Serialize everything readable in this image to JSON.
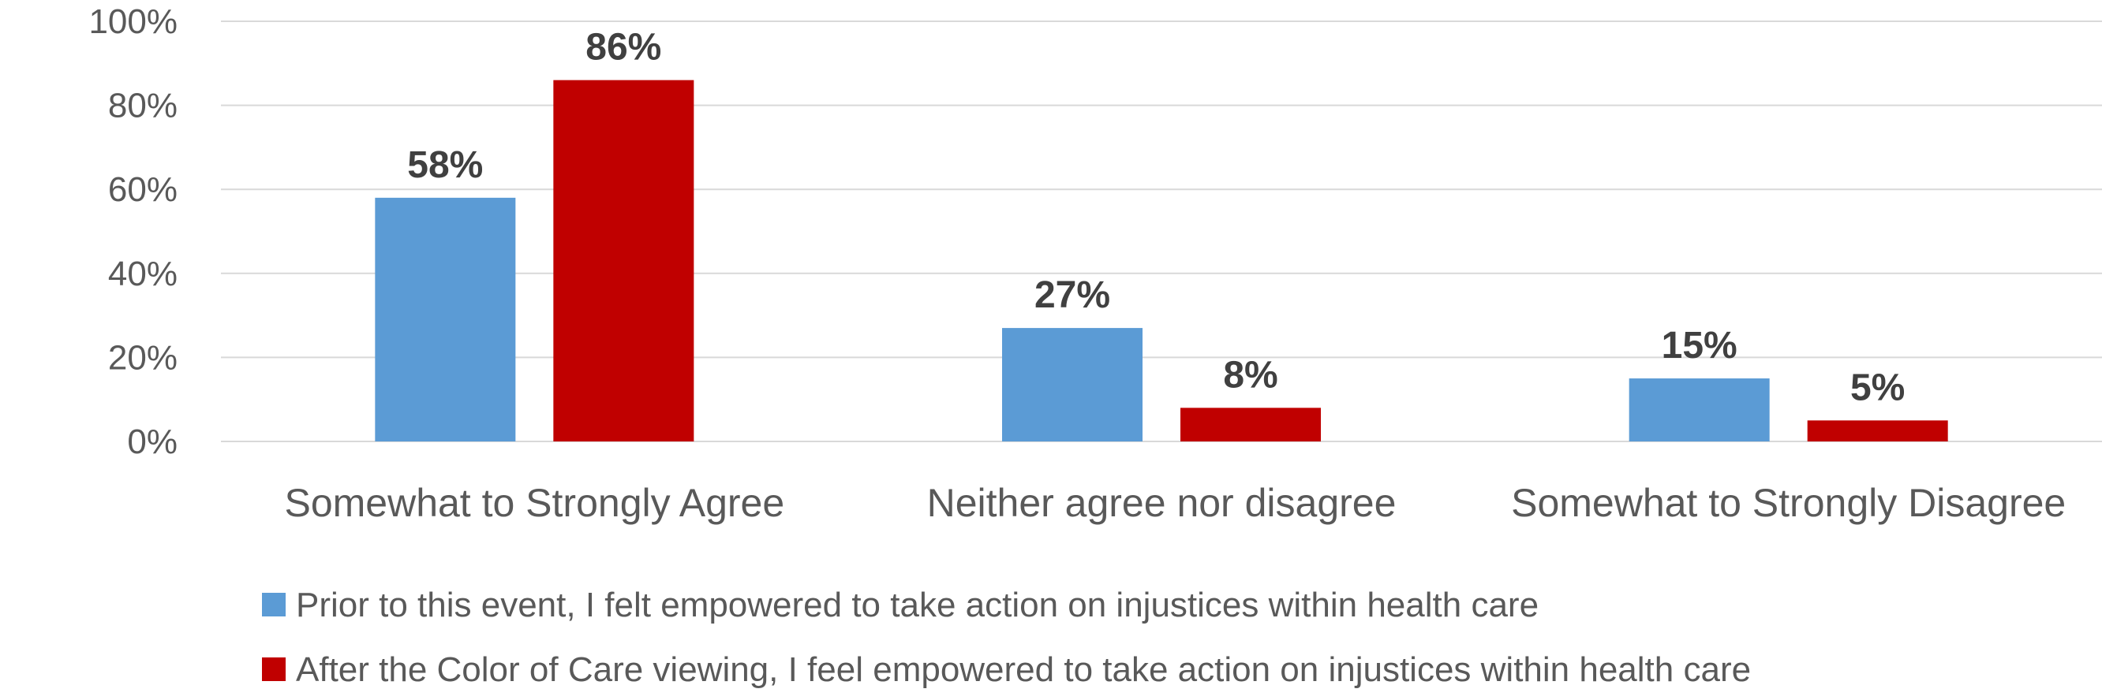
{
  "chart_data": {
    "type": "bar",
    "categories": [
      "Somewhat to Strongly Agree",
      "Neither agree nor disagree",
      "Somewhat to Strongly Disagree"
    ],
    "series": [
      {
        "name": "Prior to this event, I felt empowered to take action on injustices within health care",
        "values": [
          58,
          27,
          15
        ],
        "labels": [
          "58%",
          "27%",
          "15%"
        ],
        "color": "#5b9bd5"
      },
      {
        "name": "After the Color of Care viewing, I feel empowered to take action on injustices within health care",
        "values": [
          86,
          8,
          5
        ],
        "labels": [
          "86%",
          "8%",
          "5%"
        ],
        "color": "#c00000"
      }
    ],
    "yticks": [
      "0%",
      "20%",
      "40%",
      "60%",
      "80%",
      "100%"
    ],
    "ylim": [
      0,
      100
    ],
    "grid": true,
    "legend": "bottom-left"
  }
}
